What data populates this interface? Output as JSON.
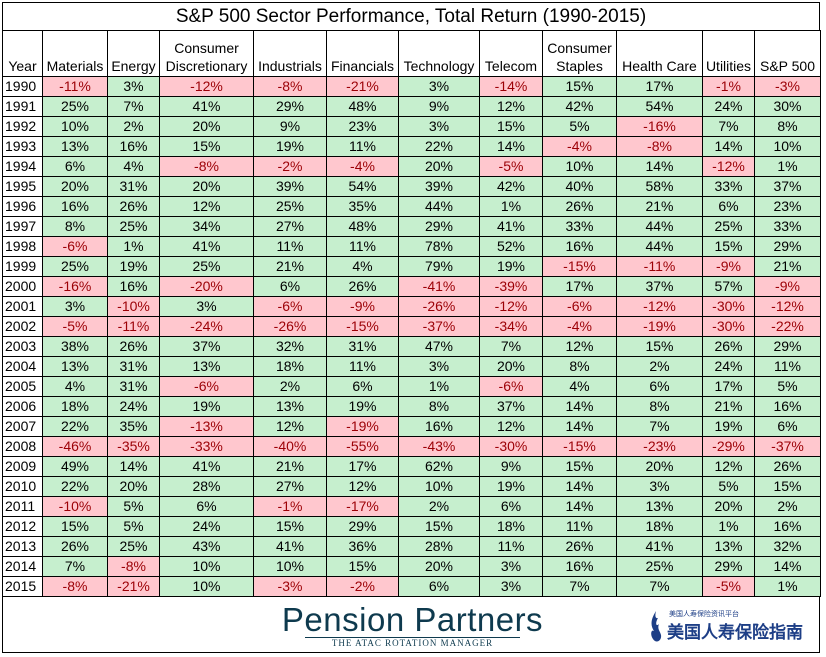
{
  "chart_data": {
    "type": "table",
    "title": "S&P 500 Sector Performance, Total Return (1990-2015)",
    "columns": [
      "Year",
      "Materials",
      "Energy",
      "Consumer Discretionary",
      "Industrials",
      "Financials",
      "Technology",
      "Telecom",
      "Consumer Staples",
      "Health Care",
      "Utilities",
      "S&P 500"
    ],
    "rows": [
      {
        "year": "1990",
        "values": [
          "-11%",
          "3%",
          "-12%",
          "-8%",
          "-21%",
          "3%",
          "-14%",
          "15%",
          "17%",
          "-1%",
          "-3%"
        ]
      },
      {
        "year": "1991",
        "values": [
          "25%",
          "7%",
          "41%",
          "29%",
          "48%",
          "9%",
          "12%",
          "42%",
          "54%",
          "24%",
          "30%"
        ]
      },
      {
        "year": "1992",
        "values": [
          "10%",
          "2%",
          "20%",
          "9%",
          "23%",
          "3%",
          "15%",
          "5%",
          "-16%",
          "7%",
          "8%"
        ]
      },
      {
        "year": "1993",
        "values": [
          "13%",
          "16%",
          "15%",
          "19%",
          "11%",
          "22%",
          "14%",
          "-4%",
          "-8%",
          "14%",
          "10%"
        ]
      },
      {
        "year": "1994",
        "values": [
          "6%",
          "4%",
          "-8%",
          "-2%",
          "-4%",
          "20%",
          "-5%",
          "10%",
          "14%",
          "-12%",
          "1%"
        ]
      },
      {
        "year": "1995",
        "values": [
          "20%",
          "31%",
          "20%",
          "39%",
          "54%",
          "39%",
          "42%",
          "40%",
          "58%",
          "33%",
          "37%"
        ]
      },
      {
        "year": "1996",
        "values": [
          "16%",
          "26%",
          "12%",
          "25%",
          "35%",
          "44%",
          "1%",
          "26%",
          "21%",
          "6%",
          "23%"
        ]
      },
      {
        "year": "1997",
        "values": [
          "8%",
          "25%",
          "34%",
          "27%",
          "48%",
          "29%",
          "41%",
          "33%",
          "44%",
          "25%",
          "33%"
        ]
      },
      {
        "year": "1998",
        "values": [
          "-6%",
          "1%",
          "41%",
          "11%",
          "11%",
          "78%",
          "52%",
          "16%",
          "44%",
          "15%",
          "29%"
        ]
      },
      {
        "year": "1999",
        "values": [
          "25%",
          "19%",
          "25%",
          "21%",
          "4%",
          "79%",
          "19%",
          "-15%",
          "-11%",
          "-9%",
          "21%"
        ]
      },
      {
        "year": "2000",
        "values": [
          "-16%",
          "16%",
          "-20%",
          "6%",
          "26%",
          "-41%",
          "-39%",
          "17%",
          "37%",
          "57%",
          "-9%"
        ]
      },
      {
        "year": "2001",
        "values": [
          "3%",
          "-10%",
          "3%",
          "-6%",
          "-9%",
          "-26%",
          "-12%",
          "-6%",
          "-12%",
          "-30%",
          "-12%"
        ]
      },
      {
        "year": "2002",
        "values": [
          "-5%",
          "-11%",
          "-24%",
          "-26%",
          "-15%",
          "-37%",
          "-34%",
          "-4%",
          "-19%",
          "-30%",
          "-22%"
        ]
      },
      {
        "year": "2003",
        "values": [
          "38%",
          "26%",
          "37%",
          "32%",
          "31%",
          "47%",
          "7%",
          "12%",
          "15%",
          "26%",
          "29%"
        ]
      },
      {
        "year": "2004",
        "values": [
          "13%",
          "31%",
          "13%",
          "18%",
          "11%",
          "3%",
          "20%",
          "8%",
          "2%",
          "24%",
          "11%"
        ]
      },
      {
        "year": "2005",
        "values": [
          "4%",
          "31%",
          "-6%",
          "2%",
          "6%",
          "1%",
          "-6%",
          "4%",
          "6%",
          "17%",
          "5%"
        ]
      },
      {
        "year": "2006",
        "values": [
          "18%",
          "24%",
          "19%",
          "13%",
          "19%",
          "8%",
          "37%",
          "14%",
          "8%",
          "21%",
          "16%"
        ]
      },
      {
        "year": "2007",
        "values": [
          "22%",
          "35%",
          "-13%",
          "12%",
          "-19%",
          "16%",
          "12%",
          "14%",
          "7%",
          "19%",
          "6%"
        ]
      },
      {
        "year": "2008",
        "values": [
          "-46%",
          "-35%",
          "-33%",
          "-40%",
          "-55%",
          "-43%",
          "-30%",
          "-15%",
          "-23%",
          "-29%",
          "-37%"
        ]
      },
      {
        "year": "2009",
        "values": [
          "49%",
          "14%",
          "41%",
          "21%",
          "17%",
          "62%",
          "9%",
          "15%",
          "20%",
          "12%",
          "26%"
        ]
      },
      {
        "year": "2010",
        "values": [
          "22%",
          "20%",
          "28%",
          "27%",
          "12%",
          "10%",
          "19%",
          "14%",
          "3%",
          "5%",
          "15%"
        ]
      },
      {
        "year": "2011",
        "values": [
          "-10%",
          "5%",
          "6%",
          "-1%",
          "-17%",
          "2%",
          "6%",
          "14%",
          "13%",
          "20%",
          "2%"
        ]
      },
      {
        "year": "2012",
        "values": [
          "15%",
          "5%",
          "24%",
          "15%",
          "29%",
          "15%",
          "18%",
          "11%",
          "18%",
          "1%",
          "16%"
        ]
      },
      {
        "year": "2013",
        "values": [
          "26%",
          "25%",
          "43%",
          "41%",
          "36%",
          "28%",
          "11%",
          "26%",
          "41%",
          "13%",
          "32%"
        ]
      },
      {
        "year": "2014",
        "values": [
          "7%",
          "-8%",
          "10%",
          "10%",
          "15%",
          "20%",
          "3%",
          "16%",
          "25%",
          "29%",
          "14%"
        ]
      },
      {
        "year": "2015",
        "values": [
          "-8%",
          "-21%",
          "10%",
          "-3%",
          "-2%",
          "6%",
          "3%",
          "7%",
          "7%",
          "-5%",
          "1%"
        ]
      }
    ],
    "colors": {
      "positive_fill": "#c6efce",
      "negative_fill": "#ffc7ce",
      "negative_text": "#9c0006",
      "positive_text": "#000000"
    }
  },
  "footer": {
    "brand_name": "Pension Partners",
    "brand_tagline": "THE ATAC ROTATION MANAGER",
    "watermark_small": "美国人寿保险资讯平台",
    "watermark_big": "美国人寿保险指南"
  }
}
